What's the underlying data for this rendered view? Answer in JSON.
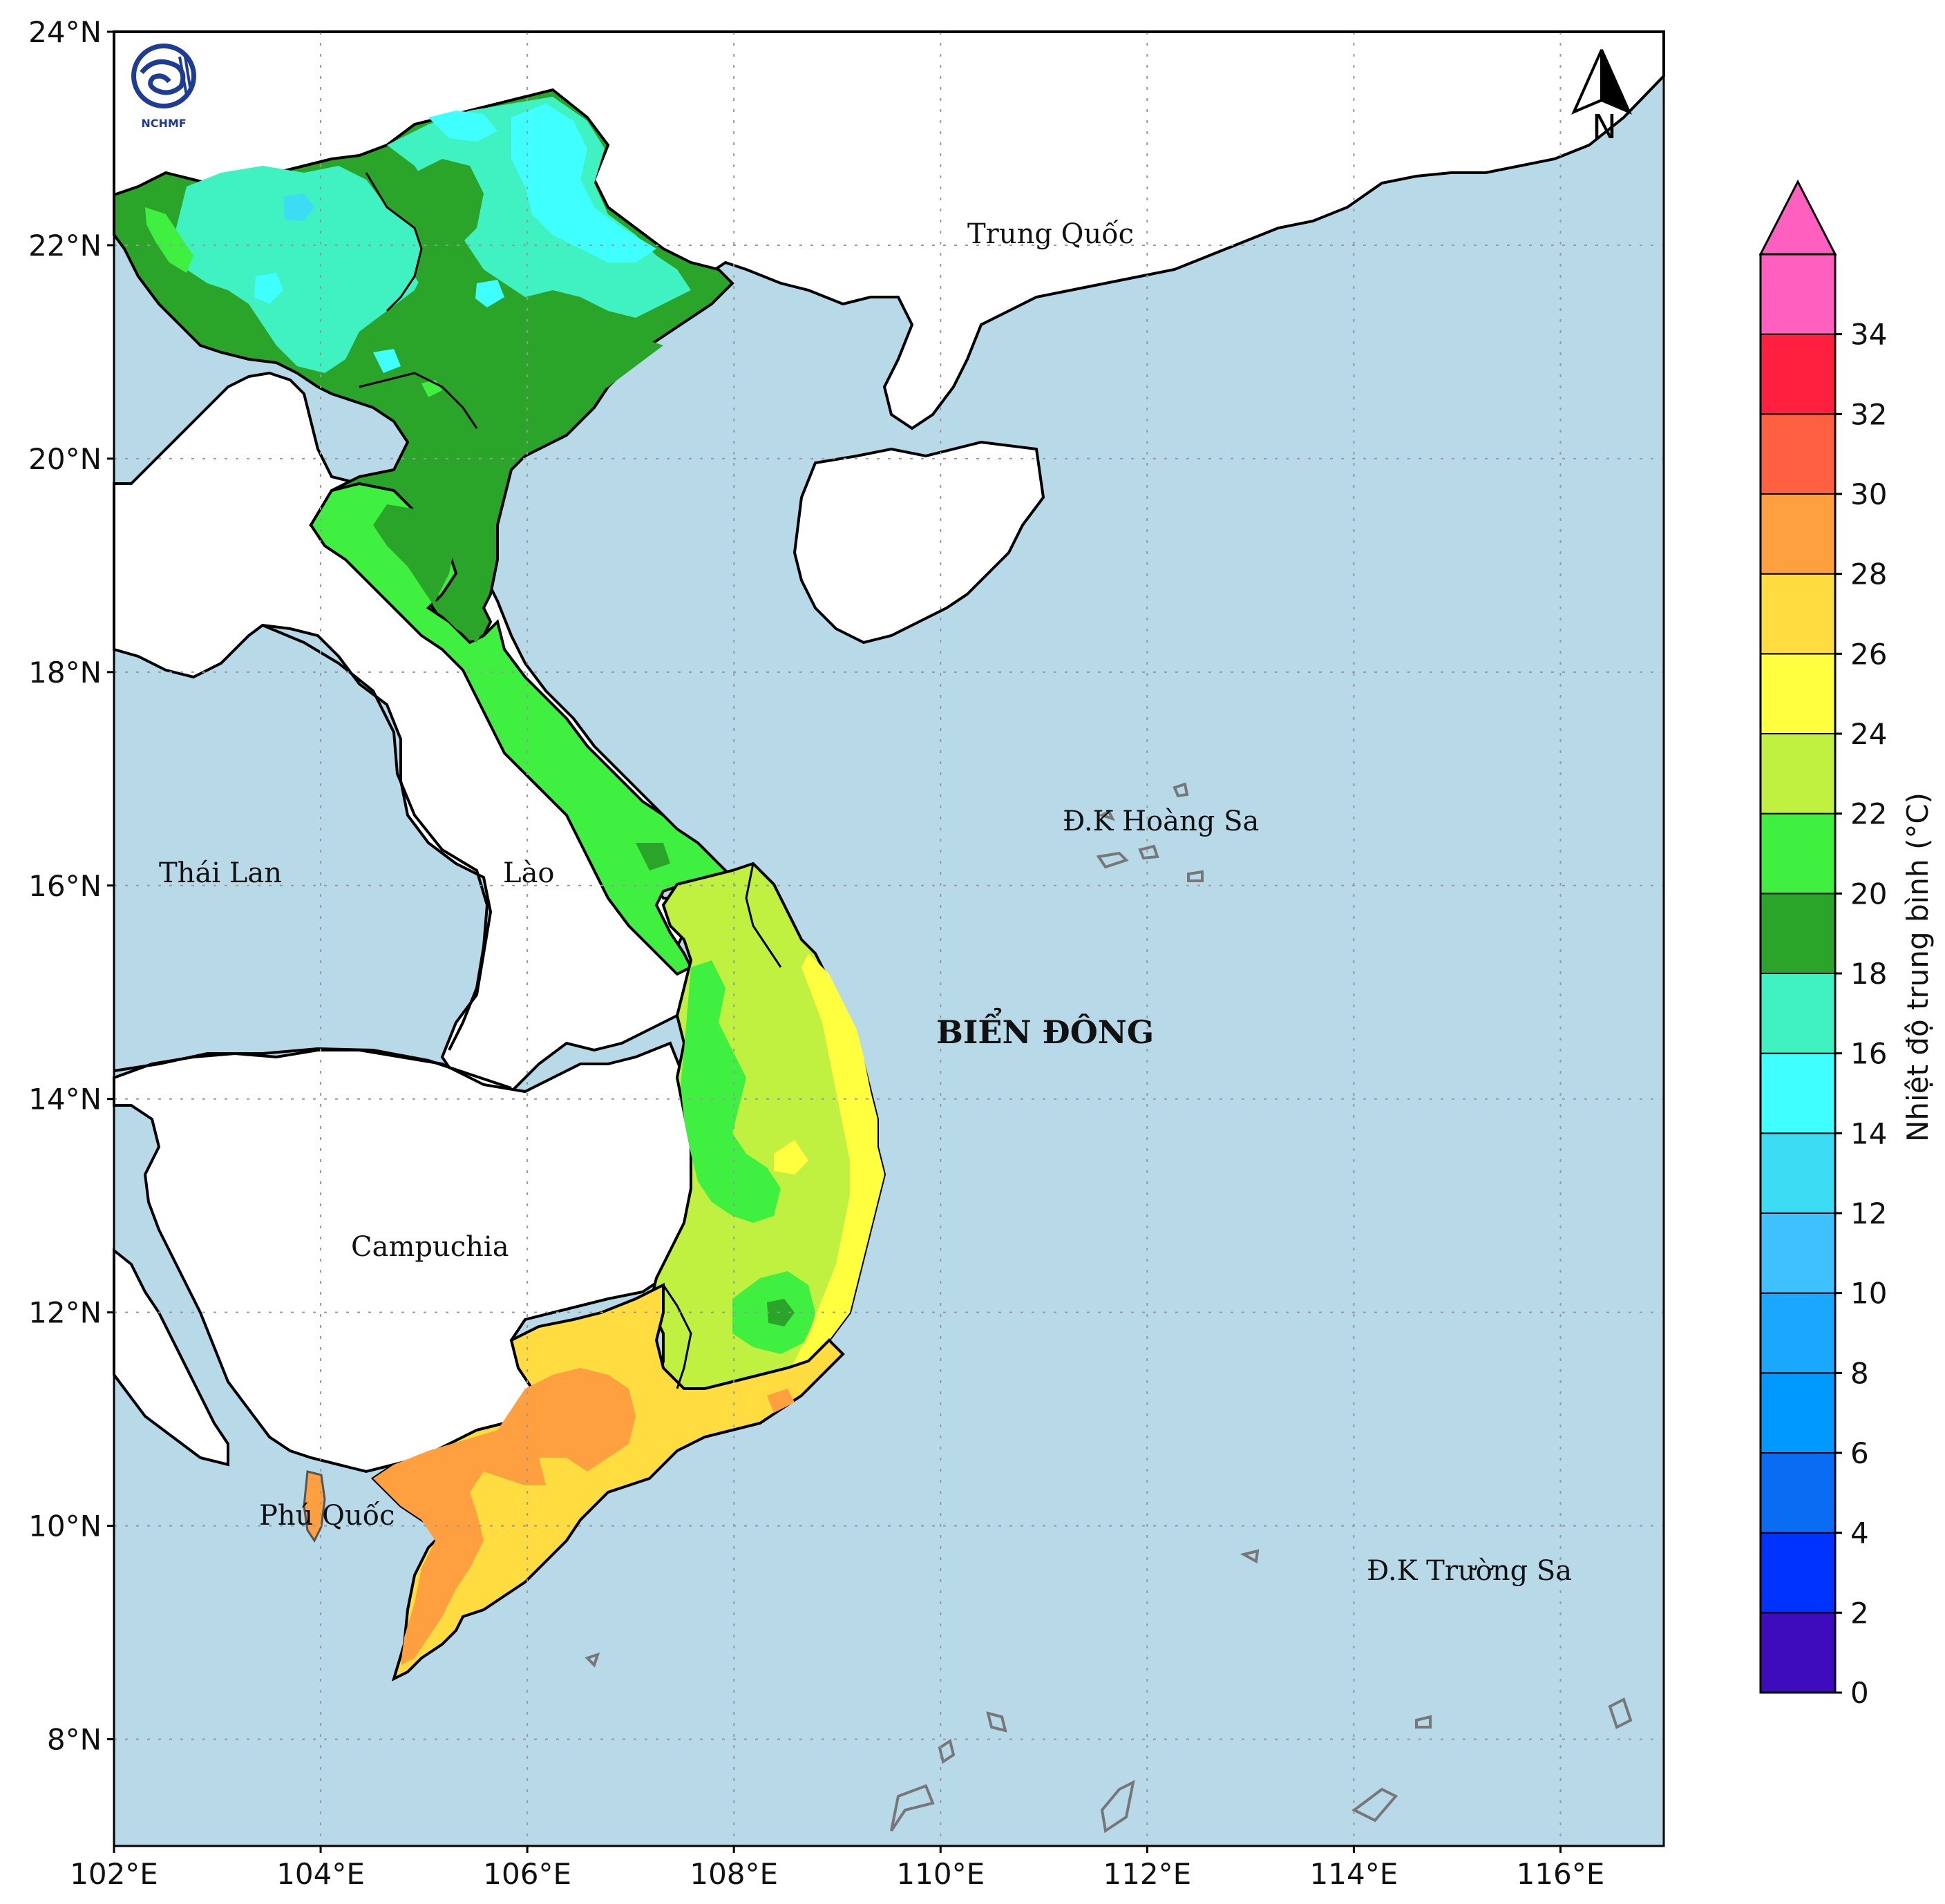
{
  "map": {
    "lat_labels": [
      "24°N",
      "22°N",
      "20°N",
      "18°N",
      "16°N",
      "14°N",
      "12°N",
      "10°N",
      "8°N"
    ],
    "lon_labels": [
      "102°E",
      "104°E",
      "106°E",
      "108°E",
      "110°E",
      "112°E",
      "114°E",
      "116°E"
    ],
    "extent": {
      "lon_min": 102,
      "lon_max": 117,
      "lat_min": 7,
      "lat_max": 24
    },
    "logo_text": "NCHMF",
    "north_label": "N",
    "places": {
      "china": "Trung Quốc",
      "thailand": "Thái Lan",
      "laos": "Lào",
      "cambodia": "Campuchia",
      "phu_quoc": "Phú Quốc",
      "hoang_sa": "Đ.K Hoàng Sa",
      "truong_sa": "Đ.K Trường Sa",
      "east_sea": "BIỂN ĐÔNG"
    },
    "colors": {
      "sea": "#b8d9e8",
      "land_other": "#ffffff",
      "border": "#000000"
    }
  },
  "colorbar": {
    "label": "Nhiệt độ trung bình (°C)",
    "ticks": [
      "0",
      "2",
      "4",
      "6",
      "8",
      "10",
      "12",
      "14",
      "16",
      "18",
      "20",
      "22",
      "24",
      "26",
      "28",
      "30",
      "32",
      "34"
    ],
    "colors": [
      "#3e0bbd",
      "#0033ff",
      "#0a6cf2",
      "#0099ff",
      "#1aa8ff",
      "#40c1ff",
      "#3ddcf5",
      "#40ffff",
      "#40f2c2",
      "#2aa52a",
      "#40f040",
      "#c0f040",
      "#ffff40",
      "#ffdd40",
      "#ffa040",
      "#ff6040",
      "#ff2040",
      "#ff60c0"
    ],
    "extend_color": "#ff60c0"
  }
}
